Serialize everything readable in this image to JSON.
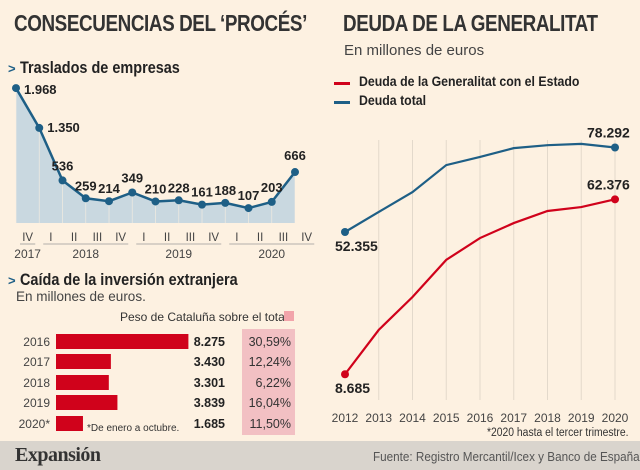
{
  "left": {
    "title": "CONSECUENCIAS DEL ‘PROCÉS’",
    "traslados": {
      "marker": ">",
      "title": "Traslados de empresas"
    },
    "inversion": {
      "marker": ">",
      "title": "Caída de la inversión extranjera",
      "subtitle": "En millones de euros.",
      "peso_label": "Peso de Cataluña sobre el total",
      "note": "*De enero a octubre."
    }
  },
  "right": {
    "title": "DEUDA DE LA GENERALITAT",
    "subtitle": "En millones de euros",
    "footnote": "*2020 hasta el tercer trimestre."
  },
  "footer": {
    "logo": "Expansión",
    "source": "Fuente:  Registro Mercantil/Icex y Banco de España"
  },
  "colors": {
    "background": "#fdf1e1",
    "blue": "#1e5f86",
    "area": "#c9d8e0",
    "red": "#d0021b",
    "pink": "#f2c0c3",
    "footer": "#d9d4cd"
  },
  "chart_data": [
    {
      "type": "area",
      "title": "Traslados de empresas",
      "categories": [
        "IV 2017",
        "I 2018",
        "II 2018",
        "III 2018",
        "IV 2018",
        "I 2019",
        "II 2019",
        "III 2019",
        "IV 2019",
        "I 2020",
        "II 2020",
        "III 2020",
        "IV 2020"
      ],
      "quarter_labels": [
        "IV",
        "I",
        "II",
        "III",
        "IV",
        "I",
        "II",
        "III",
        "IV",
        "I",
        "II",
        "III",
        "IV"
      ],
      "year_labels": [
        "2017",
        "2018",
        "2019",
        "2020"
      ],
      "values": [
        1968,
        1350,
        536,
        259,
        214,
        349,
        210,
        228,
        161,
        188,
        107,
        203,
        666
      ],
      "data_labels": [
        "1.968",
        "1.350",
        "536",
        "259",
        "214",
        "349",
        "210",
        "228",
        "161",
        "188",
        "107",
        "203",
        "666"
      ]
    },
    {
      "type": "bar",
      "title": "Caída de la inversión extranjera",
      "subtitle": "En millones de euros.",
      "categories": [
        "2016",
        "2017",
        "2018",
        "2019",
        "2020*"
      ],
      "values": [
        8275,
        3430,
        3301,
        3839,
        1685
      ],
      "data_labels": [
        "8.275",
        "3.430",
        "3.301",
        "3.839",
        "1.685"
      ],
      "series2": {
        "name": "Peso de Cataluña sobre el total",
        "labels": [
          "30,59%",
          "12,24%",
          "6,22%",
          "16,04%",
          "11,50%"
        ],
        "values": [
          30.59,
          12.24,
          6.22,
          16.04,
          11.5
        ]
      },
      "orientation": "horizontal"
    },
    {
      "type": "line",
      "title": "DEUDA DE LA GENERALITAT",
      "ylabel": "En millones de euros",
      "x": [
        "2012",
        "2013",
        "2014",
        "2015",
        "2016",
        "2017",
        "2018",
        "2019",
        "2020"
      ],
      "grid": "vertical",
      "legend": "top-left",
      "series": [
        {
          "name": "Deuda de la Generalitat con el Estado",
          "color": "#d0021b",
          "values": [
            8685,
            22300,
            32400,
            43800,
            50500,
            55100,
            58800,
            60000,
            62376
          ],
          "labels": {
            "0": "8.685",
            "8": "62.376"
          }
        },
        {
          "name": "Deuda total",
          "color": "#1e5f86",
          "values": [
            52355,
            58500,
            64600,
            72900,
            75400,
            78100,
            79000,
            79400,
            78292
          ],
          "labels": {
            "0": "52.355",
            "8": "78.292"
          }
        }
      ]
    }
  ]
}
